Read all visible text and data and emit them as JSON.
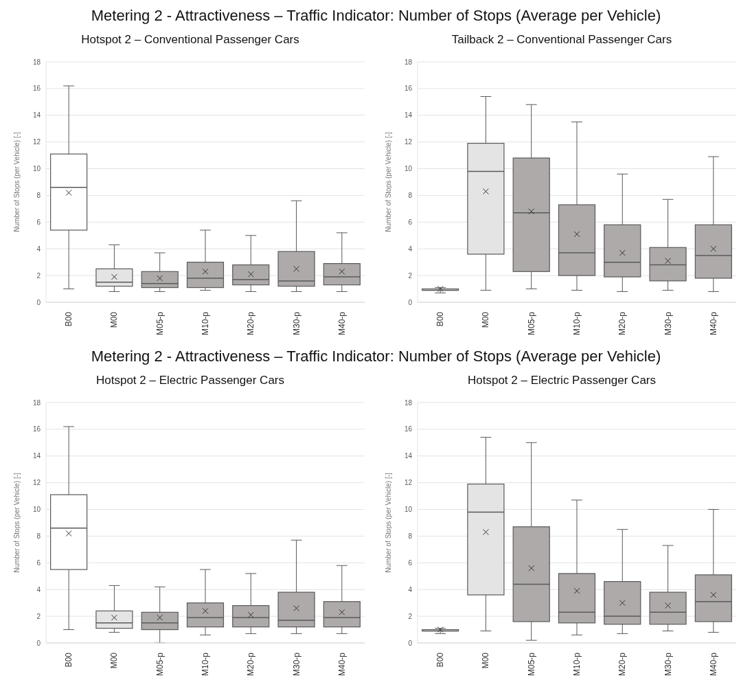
{
  "chart_data": [
    {
      "type": "box",
      "title": "Metering 2 - Attractiveness – Traffic Indicator: Number of Stops (Average per Vehicle)",
      "subtitle": "Hotspot 2 – Conventional Passenger Cars",
      "ylabel": "Number of Stops (per Vehicle) [-]",
      "categories": [
        "B00",
        "M00",
        "M05-p",
        "M10-p",
        "M20-p",
        "M30-p",
        "M40-p"
      ],
      "colors": [
        "#ffffff",
        "#e4e4e4",
        "#aeaaaa",
        "#aeaaaa",
        "#aeaaaa",
        "#aeaaaa",
        "#aeaaaa"
      ],
      "ylim": [
        0,
        18
      ],
      "yticks": [
        0,
        2,
        4,
        6,
        8,
        10,
        12,
        14,
        16,
        18
      ],
      "grid": "y",
      "boxes": [
        {
          "low": 1.0,
          "q1": 5.4,
          "median": 8.6,
          "q3": 11.1,
          "high": 16.2,
          "mean": 8.2
        },
        {
          "low": 0.8,
          "q1": 1.2,
          "median": 1.5,
          "q3": 2.5,
          "high": 4.3,
          "mean": 1.9
        },
        {
          "low": 0.8,
          "q1": 1.1,
          "median": 1.4,
          "q3": 2.3,
          "high": 3.7,
          "mean": 1.8
        },
        {
          "low": 0.9,
          "q1": 1.1,
          "median": 1.8,
          "q3": 3.0,
          "high": 5.4,
          "mean": 2.3
        },
        {
          "low": 0.8,
          "q1": 1.3,
          "median": 1.7,
          "q3": 2.8,
          "high": 5.0,
          "mean": 2.1
        },
        {
          "low": 0.8,
          "q1": 1.2,
          "median": 1.6,
          "q3": 3.8,
          "high": 7.6,
          "mean": 2.5
        },
        {
          "low": 0.8,
          "q1": 1.3,
          "median": 1.9,
          "q3": 2.9,
          "high": 5.2,
          "mean": 2.3
        }
      ]
    },
    {
      "type": "box",
      "subtitle": "Tailback 2 – Conventional Passenger Cars",
      "ylabel": "Number of Stops (per Vehicle) [-]",
      "categories": [
        "B00",
        "M00",
        "M05-p",
        "M10-p",
        "M20-p",
        "M30-p",
        "M40-p"
      ],
      "colors": [
        "#ffffff",
        "#e4e4e4",
        "#aeaaaa",
        "#aeaaaa",
        "#aeaaaa",
        "#aeaaaa",
        "#aeaaaa"
      ],
      "ylim": [
        0,
        18
      ],
      "yticks": [
        0,
        2,
        4,
        6,
        8,
        10,
        12,
        14,
        16,
        18
      ],
      "grid": "y",
      "boxes": [
        {
          "low": 0.7,
          "q1": 0.9,
          "median": 0.9,
          "q3": 1.0,
          "high": 1.1,
          "mean": 1.0
        },
        {
          "low": 0.9,
          "q1": 3.6,
          "median": 9.8,
          "q3": 11.9,
          "high": 15.4,
          "mean": 8.3
        },
        {
          "low": 1.0,
          "q1": 2.3,
          "median": 6.7,
          "q3": 10.8,
          "high": 14.8,
          "mean": 6.8
        },
        {
          "low": 0.9,
          "q1": 2.0,
          "median": 3.7,
          "q3": 7.3,
          "high": 13.5,
          "mean": 5.1
        },
        {
          "low": 0.8,
          "q1": 1.9,
          "median": 3.0,
          "q3": 5.8,
          "high": 9.6,
          "mean": 3.7
        },
        {
          "low": 0.9,
          "q1": 1.6,
          "median": 2.8,
          "q3": 4.1,
          "high": 7.7,
          "mean": 3.1
        },
        {
          "low": 0.8,
          "q1": 1.8,
          "median": 3.5,
          "q3": 5.8,
          "high": 10.9,
          "mean": 4.0
        }
      ]
    },
    {
      "type": "box",
      "title": "Metering 2 - Attractiveness – Traffic Indicator: Number of Stops (Average per Vehicle)",
      "subtitle": "Hotspot 2 – Electric Passenger Cars",
      "ylabel": "Number of Stops (per Vehicle) [-]",
      "categories": [
        "B00",
        "M00",
        "M05-p",
        "M10-p",
        "M20-p",
        "M30-p",
        "M40-p"
      ],
      "colors": [
        "#ffffff",
        "#e4e4e4",
        "#aeaaaa",
        "#aeaaaa",
        "#aeaaaa",
        "#aeaaaa",
        "#aeaaaa"
      ],
      "ylim": [
        0,
        18
      ],
      "yticks": [
        0,
        2,
        4,
        6,
        8,
        10,
        12,
        14,
        16,
        18
      ],
      "grid": "y",
      "boxes": [
        {
          "low": 1.0,
          "q1": 5.5,
          "median": 8.6,
          "q3": 11.1,
          "high": 16.2,
          "mean": 8.2
        },
        {
          "low": 0.8,
          "q1": 1.1,
          "median": 1.5,
          "q3": 2.4,
          "high": 4.3,
          "mean": 1.9
        },
        {
          "low": 0.0,
          "q1": 1.0,
          "median": 1.5,
          "q3": 2.3,
          "high": 4.2,
          "mean": 1.9
        },
        {
          "low": 0.6,
          "q1": 1.2,
          "median": 1.9,
          "q3": 3.0,
          "high": 5.5,
          "mean": 2.4
        },
        {
          "low": 0.7,
          "q1": 1.2,
          "median": 1.9,
          "q3": 2.8,
          "high": 5.2,
          "mean": 2.1
        },
        {
          "low": 0.7,
          "q1": 1.2,
          "median": 1.7,
          "q3": 3.8,
          "high": 7.7,
          "mean": 2.6
        },
        {
          "low": 0.7,
          "q1": 1.2,
          "median": 1.9,
          "q3": 3.1,
          "high": 5.8,
          "mean": 2.3
        }
      ]
    },
    {
      "type": "box",
      "subtitle": "Hotspot 2 – Electric Passenger Cars",
      "ylabel": "Number of Stops (per Vehicle) [-]",
      "categories": [
        "B00",
        "M00",
        "M05-p",
        "M10-p",
        "M20-p",
        "M30-p",
        "M40-p"
      ],
      "colors": [
        "#ffffff",
        "#e4e4e4",
        "#aeaaaa",
        "#aeaaaa",
        "#aeaaaa",
        "#aeaaaa",
        "#aeaaaa"
      ],
      "ylim": [
        0,
        18
      ],
      "yticks": [
        0,
        2,
        4,
        6,
        8,
        10,
        12,
        14,
        16,
        18
      ],
      "grid": "y",
      "boxes": [
        {
          "low": 0.7,
          "q1": 0.9,
          "median": 0.9,
          "q3": 1.0,
          "high": 1.1,
          "mean": 1.0
        },
        {
          "low": 0.9,
          "q1": 3.6,
          "median": 9.8,
          "q3": 11.9,
          "high": 15.4,
          "mean": 8.3
        },
        {
          "low": 0.2,
          "q1": 1.6,
          "median": 4.4,
          "q3": 8.7,
          "high": 15.0,
          "mean": 5.6
        },
        {
          "low": 0.6,
          "q1": 1.5,
          "median": 2.3,
          "q3": 5.2,
          "high": 10.7,
          "mean": 3.9
        },
        {
          "low": 0.7,
          "q1": 1.4,
          "median": 2.0,
          "q3": 4.6,
          "high": 8.5,
          "mean": 3.0
        },
        {
          "low": 0.9,
          "q1": 1.4,
          "median": 2.3,
          "q3": 3.8,
          "high": 7.3,
          "mean": 2.8
        },
        {
          "low": 0.8,
          "q1": 1.6,
          "median": 3.1,
          "q3": 5.1,
          "high": 10.0,
          "mean": 3.6
        }
      ]
    }
  ]
}
